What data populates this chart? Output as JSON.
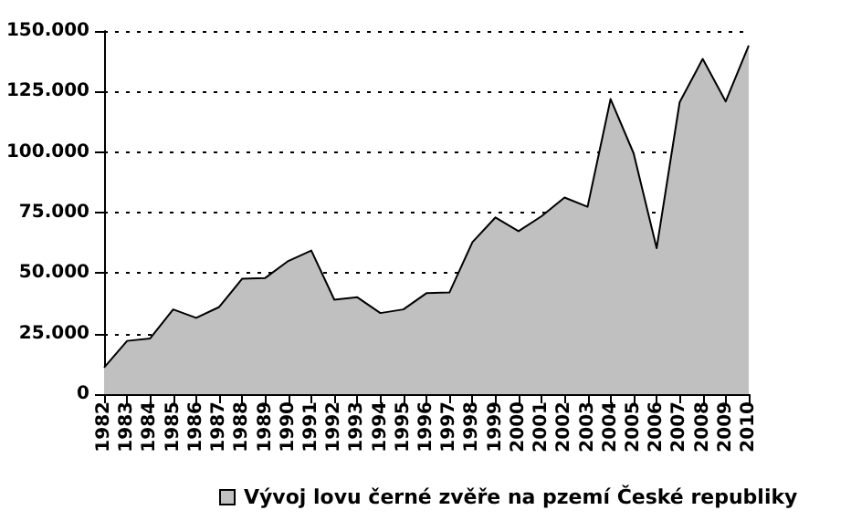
{
  "chart_data": {
    "type": "area",
    "categories": [
      "1982",
      "1983",
      "1984",
      "1985",
      "1986",
      "1987",
      "1988",
      "1989",
      "1990",
      "1991",
      "1992",
      "1993",
      "1994",
      "1995",
      "1996",
      "1997",
      "1998",
      "1999",
      "2000",
      "2001",
      "2002",
      "2003",
      "2004",
      "2005",
      "2006",
      "2007",
      "2008",
      "2009",
      "2010"
    ],
    "series": [
      {
        "name": "Vývoj lovu černé zvěře na pzemí České republiky",
        "color": "#c0c0c0",
        "values": [
          11000,
          22000,
          23000,
          35000,
          31500,
          36000,
          47700,
          48000,
          55000,
          59300,
          39000,
          40000,
          33500,
          35000,
          41700,
          42000,
          62800,
          73000,
          67300,
          73500,
          81200,
          77400,
          121900,
          99500,
          60300,
          120600,
          138500,
          120900,
          144000
        ]
      }
    ],
    "ylim": [
      0,
      150000
    ],
    "yticks": [
      {
        "value": 0,
        "label": "0"
      },
      {
        "value": 25000,
        "label": "25.000"
      },
      {
        "value": 50000,
        "label": "50.000"
      },
      {
        "value": 75000,
        "label": "75.000"
      },
      {
        "value": 100000,
        "label": "100.000"
      },
      {
        "value": 125000,
        "label": "125.000"
      },
      {
        "value": 150000,
        "label": "150.000"
      }
    ],
    "grid": "y",
    "legend": "bottom",
    "marker": "none",
    "line_style": "solid"
  }
}
